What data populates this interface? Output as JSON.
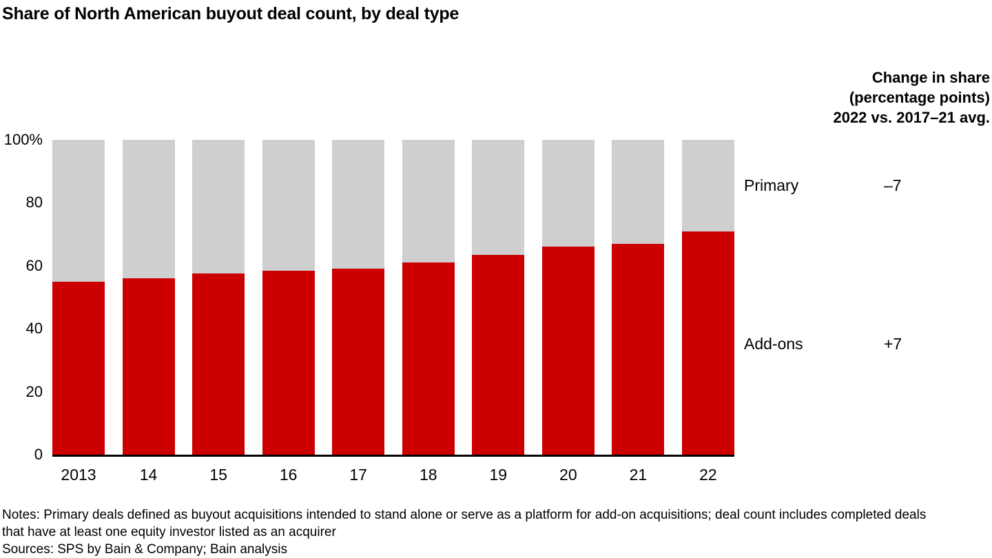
{
  "title": "Share of North American buyout deal count, by deal type",
  "chart_data": {
    "type": "bar",
    "stacked": true,
    "title": "Share of North American buyout deal count, by deal type",
    "categories": [
      "2013",
      "14",
      "15",
      "16",
      "17",
      "18",
      "19",
      "20",
      "21",
      "22"
    ],
    "series": [
      {
        "name": "Add-ons",
        "color": "#cc0000",
        "values": [
          55,
          56,
          57.5,
          58.5,
          59,
          61,
          63.5,
          66,
          67,
          71
        ]
      },
      {
        "name": "Primary",
        "color": "#cfcfcf",
        "values": [
          45,
          44,
          42.5,
          41.5,
          41,
          39,
          36.5,
          34,
          33,
          29
        ]
      }
    ],
    "y_axis": {
      "range": [
        0,
        100
      ],
      "ticks": [
        {
          "value": 100,
          "label": "100%"
        },
        {
          "value": 80,
          "label": "80"
        },
        {
          "value": 60,
          "label": "60"
        },
        {
          "value": 40,
          "label": "40"
        },
        {
          "value": 20,
          "label": "20"
        },
        {
          "value": 0,
          "label": "0"
        }
      ]
    },
    "grid": false,
    "legend_position": "right"
  },
  "right_panel": {
    "header_lines": [
      "Change in share",
      "(percentage points)",
      "2022 vs. 2017–21 avg."
    ],
    "rows": [
      {
        "label": "Primary",
        "value": "–7"
      },
      {
        "label": "Add-ons",
        "value": "+7"
      }
    ]
  },
  "footer": {
    "note_lines": [
      "Notes: Primary deals defined as buyout acquisitions intended to stand alone or serve as a platform for add-on acquisitions; deal count includes completed deals",
      "that have at least one equity investor listed as an acquirer",
      "Sources: SPS by Bain & Company; Bain analysis"
    ]
  },
  "colors": {
    "addons": "#cc0000",
    "primary": "#cfcfcf",
    "axis": "#000000"
  }
}
